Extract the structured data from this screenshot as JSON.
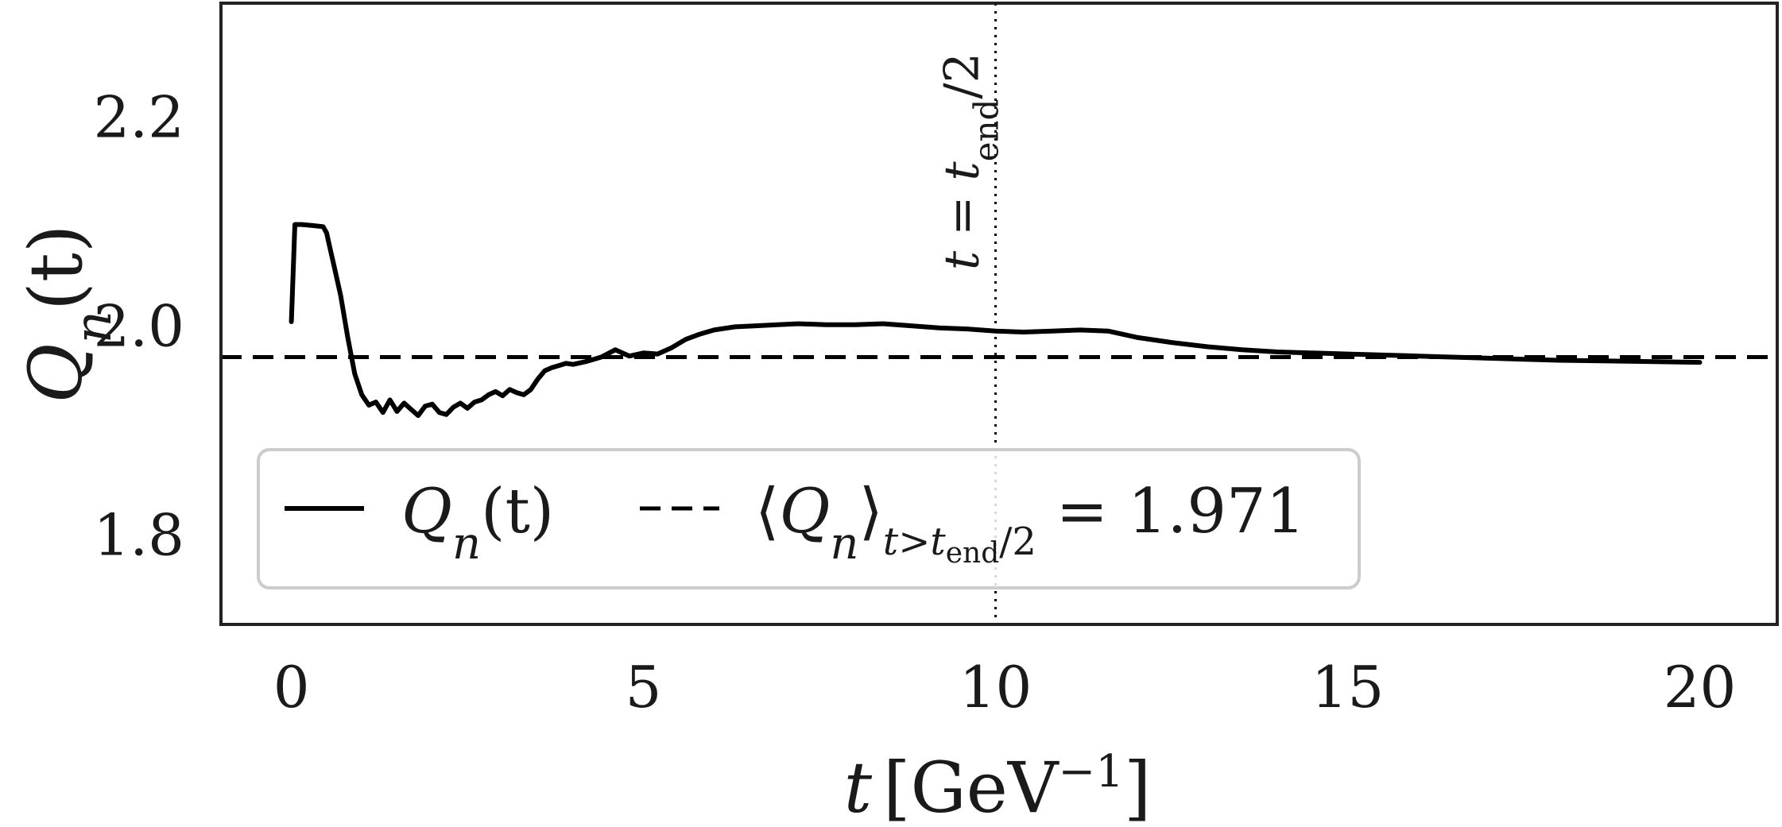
{
  "chart_data": {
    "type": "line",
    "xlabel": "t [GeV^−1]",
    "xlabel_parts": {
      "var": "t",
      "open": "[",
      "unit": "GeV",
      "exp": "−1",
      "close": "]"
    },
    "ylabel": "Q_n(t)",
    "ylabel_parts": {
      "sym": "Q",
      "sub": "n",
      "arg": "(t)"
    },
    "xlim": [
      -1.0,
      21.1
    ],
    "ylim": [
      1.715,
      2.31
    ],
    "x_ticks": [
      0,
      5,
      10,
      15,
      20
    ],
    "x_tick_labels": [
      "0",
      "5",
      "10",
      "15",
      "20"
    ],
    "y_ticks": [
      1.8,
      2.0,
      2.2
    ],
    "y_tick_labels": [
      "1.8",
      "2.0",
      "2.2"
    ],
    "grid": false,
    "legend_placement": "lower-left",
    "series": [
      {
        "name": "Q_n(t)",
        "legend_parts": {
          "sym": "Q",
          "sub": "n",
          "arg": "(t)"
        },
        "style": "solid",
        "color": "#000000",
        "x": [
          0.0,
          0.05,
          0.15,
          0.3,
          0.45,
          0.5,
          0.55,
          0.6,
          0.7,
          0.8,
          0.9,
          1.0,
          1.1,
          1.2,
          1.3,
          1.4,
          1.5,
          1.6,
          1.7,
          1.8,
          1.9,
          2.0,
          2.1,
          2.2,
          2.3,
          2.4,
          2.5,
          2.6,
          2.7,
          2.8,
          2.9,
          3.0,
          3.1,
          3.2,
          3.3,
          3.4,
          3.5,
          3.6,
          3.7,
          3.8,
          3.9,
          4.0,
          4.2,
          4.4,
          4.6,
          4.8,
          5.0,
          5.2,
          5.4,
          5.6,
          5.8,
          6.0,
          6.3,
          6.6,
          6.9,
          7.2,
          7.6,
          8.0,
          8.4,
          8.8,
          9.2,
          9.6,
          10.0,
          10.4,
          10.8,
          11.2,
          11.6,
          12.0,
          12.5,
          13.0,
          13.5,
          14.0,
          15.0,
          16.0,
          17.0,
          18.0,
          19.0,
          20.0
        ],
        "y": [
          2.005,
          2.098,
          2.098,
          2.097,
          2.096,
          2.09,
          2.075,
          2.06,
          2.03,
          1.99,
          1.955,
          1.935,
          1.925,
          1.928,
          1.918,
          1.93,
          1.919,
          1.927,
          1.921,
          1.915,
          1.924,
          1.926,
          1.918,
          1.916,
          1.923,
          1.927,
          1.922,
          1.928,
          1.93,
          1.935,
          1.938,
          1.934,
          1.94,
          1.937,
          1.935,
          1.94,
          1.95,
          1.958,
          1.961,
          1.963,
          1.965,
          1.964,
          1.967,
          1.971,
          1.978,
          1.972,
          1.975,
          1.974,
          1.98,
          1.988,
          1.993,
          1.997,
          2.0,
          2.001,
          2.002,
          2.003,
          2.002,
          2.002,
          2.003,
          2.001,
          1.999,
          1.998,
          1.996,
          1.995,
          1.996,
          1.997,
          1.996,
          1.99,
          1.985,
          1.981,
          1.978,
          1.976,
          1.974,
          1.972,
          1.97,
          1.968,
          1.967,
          1.966
        ]
      },
      {
        "name": "⟨Q_n⟩_{t>t_end/2} = 1.971",
        "legend_parts": {
          "open": "⟨",
          "sym": "Q",
          "sub": "n",
          "close": "⟩",
          "cond_t": "t>t",
          "cond_sub": "end",
          "cond_tail": "/2",
          "eq": " = 1.971"
        },
        "style": "dashed",
        "color": "#000000",
        "y_value": 1.971
      }
    ],
    "annotations": [
      {
        "type": "vline",
        "x": 10.0,
        "style": "dotted",
        "label": "t = t_end/2",
        "label_parts": {
          "lhs": "t = t",
          "sub": "end",
          "tail": "/2"
        }
      }
    ]
  }
}
